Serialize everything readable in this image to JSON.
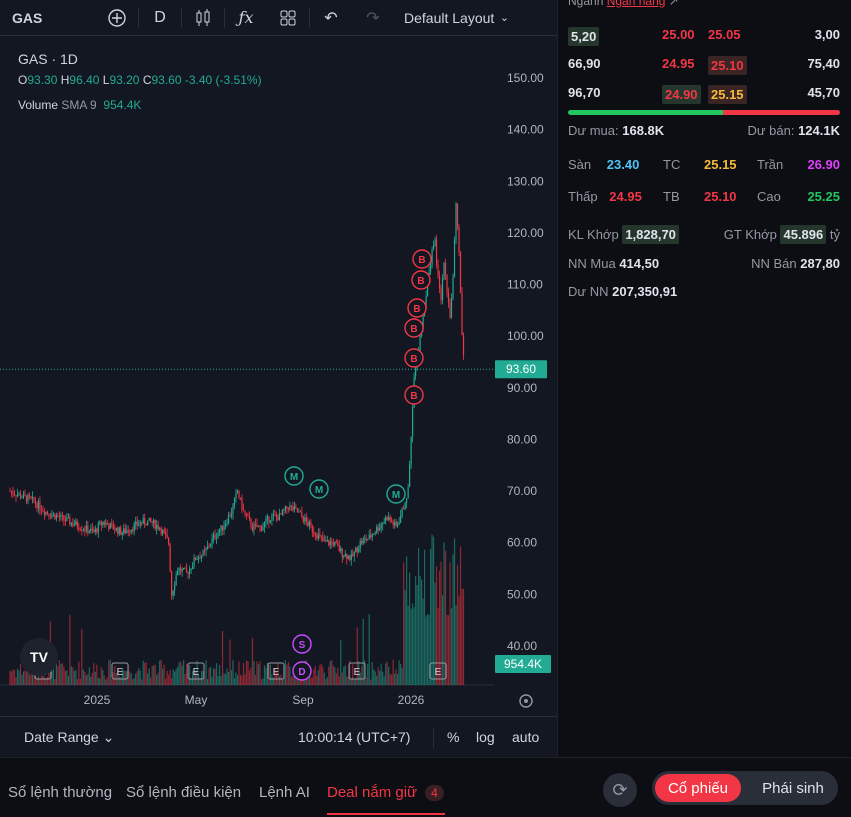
{
  "toolbar": {
    "symbol": "GAS",
    "interval": "D",
    "layout_name": "Default Layout"
  },
  "legend": {
    "title": "GAS · 1D",
    "open_label": "O",
    "open": "93.30",
    "high_label": "H",
    "high": "96.40",
    "low_label": "L",
    "low": "93.20",
    "close_label": "C",
    "close": "93.60",
    "change": "-3.40 (-3.51%)",
    "volume_label": "Volume",
    "volume_ma": "SMA 9",
    "volume_value": "954.4K"
  },
  "chart_data": {
    "type": "candlestick",
    "y_ticks": [
      "150.00",
      "140.00",
      "130.00",
      "120.00",
      "110.00",
      "100.00",
      "90.00",
      "80.00",
      "70.00",
      "60.00",
      "50.00",
      "40.00"
    ],
    "x_ticks": [
      "2025",
      "May",
      "Sep",
      "2026"
    ],
    "ylim": [
      37,
      155
    ],
    "last_price": "93.60",
    "last_volume": "954.4K",
    "series": [
      {
        "name": "Price",
        "points": [
          [
            0,
            70
          ],
          [
            8,
            69
          ],
          [
            16,
            68
          ],
          [
            24,
            66
          ],
          [
            32,
            65
          ],
          [
            40,
            64
          ],
          [
            48,
            63
          ],
          [
            56,
            62
          ],
          [
            62,
            64
          ],
          [
            68,
            63
          ],
          [
            75,
            62
          ],
          [
            82,
            63
          ],
          [
            88,
            64
          ],
          [
            94,
            64
          ],
          [
            100,
            63
          ],
          [
            106,
            60
          ],
          [
            108,
            50
          ],
          [
            112,
            55
          ],
          [
            118,
            54
          ],
          [
            124,
            57
          ],
          [
            130,
            58
          ],
          [
            136,
            61
          ],
          [
            142,
            63
          ],
          [
            148,
            66
          ],
          [
            152,
            70
          ],
          [
            156,
            66
          ],
          [
            162,
            63
          ],
          [
            168,
            63
          ],
          [
            174,
            65
          ],
          [
            180,
            65
          ],
          [
            186,
            67
          ],
          [
            192,
            66
          ],
          [
            198,
            64
          ],
          [
            204,
            62
          ],
          [
            210,
            60
          ],
          [
            216,
            60
          ],
          [
            222,
            58
          ],
          [
            228,
            57
          ],
          [
            234,
            60
          ],
          [
            240,
            61
          ],
          [
            246,
            63
          ],
          [
            252,
            65
          ],
          [
            258,
            63
          ],
          [
            262,
            66
          ],
          [
            266,
            70
          ],
          [
            268,
            80
          ],
          [
            270,
            92
          ],
          [
            272,
            95
          ],
          [
            274,
            100
          ],
          [
            276,
            104
          ],
          [
            278,
            108
          ],
          [
            280,
            112
          ],
          [
            282,
            117
          ],
          [
            284,
            118
          ],
          [
            286,
            111
          ],
          [
            288,
            107
          ],
          [
            290,
            115
          ],
          [
            292,
            109
          ],
          [
            294,
            104
          ],
          [
            296,
            111
          ],
          [
            298,
            125
          ],
          [
            300,
            117
          ],
          [
            302,
            100
          ],
          [
            304,
            93.6
          ]
        ]
      }
    ],
    "markers": [
      "M",
      "M",
      "M",
      "B",
      "B",
      "B",
      "B",
      "B",
      "B",
      "S",
      "D",
      "E"
    ]
  },
  "orderbook": {
    "header_label": "Ngành",
    "header_link": "Ngân hàng",
    "rows": [
      {
        "bid_vol": "5,20",
        "bid": "25.00",
        "ask": "25.05",
        "ask_vol": "3,00"
      },
      {
        "bid_vol": "66,90",
        "bid": "24.95",
        "ask": "25.10",
        "ask_vol": "75,40"
      },
      {
        "bid_vol": "96,70",
        "bid": "24.90",
        "ask": "25.15",
        "ask_vol": "45,70"
      }
    ],
    "buy_ratio": 0.57,
    "du_mua_label": "Dư mua:",
    "du_mua": "168.8K",
    "du_ban_label": "Dư bán:",
    "du_ban": "124.1K",
    "san_label": "Sàn",
    "san": "23.40",
    "tc_label": "TC",
    "tc": "25.15",
    "tran_label": "Trần",
    "tran": "26.90",
    "thap_label": "Thấp",
    "thap": "24.95",
    "tb_label": "TB",
    "tb": "25.10",
    "cao_label": "Cao",
    "cao": "25.25",
    "kl_khop_label": "KL Khớp",
    "kl_khop": "1,828,70",
    "gt_khop_label": "GT Khớp",
    "gt_khop": "45.896",
    "gt_unit": "tỷ",
    "nn_mua_label": "NN Mua",
    "nn_mua": "414,50",
    "nn_ban_label": "NN Bán",
    "nn_ban": "287,80",
    "du_nn_label": "Dư NN",
    "du_nn": "207,350,91"
  },
  "bottom_bar": {
    "date_range": "Date Range",
    "time": "10:00:14 (UTC+7)",
    "pct": "%",
    "log": "log",
    "auto": "auto"
  },
  "footer": {
    "tabs": [
      "Sổ lệnh thường",
      "Sổ lệnh điều kiện",
      "Lệnh AI",
      "Deal nắm giữ"
    ],
    "deal_count": "4",
    "seg_stock": "Cổ phiếu",
    "seg_deriv": "Phái sinh"
  },
  "colors": {
    "up": "#22ab94",
    "down": "#f23645",
    "bg": "#131722"
  }
}
